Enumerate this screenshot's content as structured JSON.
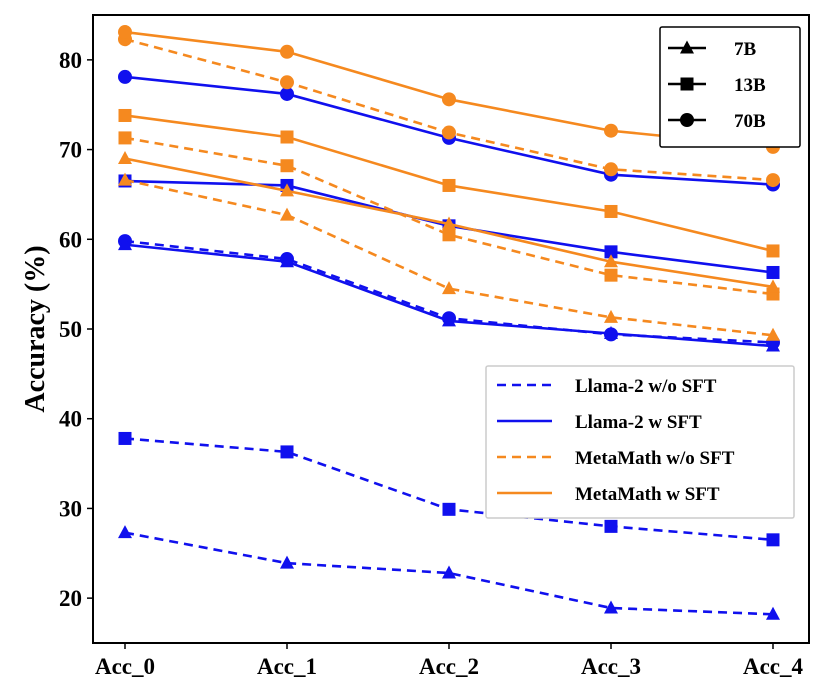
{
  "chart_data": {
    "type": "line",
    "title": "",
    "xlabel": "",
    "ylabel": "Accuracy (%)",
    "categories": [
      "Acc_0",
      "Acc_1",
      "Acc_2",
      "Acc_3",
      "Acc_4"
    ],
    "ylim": [
      15,
      85
    ],
    "yticks": [
      20,
      30,
      40,
      50,
      60,
      70,
      80
    ],
    "grid": false,
    "colors": {
      "llama": "#1010ee",
      "metamath": "#f5891f",
      "axis": "#000000"
    },
    "series": [
      {
        "name": "Llama-2 w/o SFT 7B",
        "model": "Llama-2",
        "sft": false,
        "size": "7B",
        "values": [
          27.3,
          23.9,
          22.8,
          18.9,
          18.2
        ]
      },
      {
        "name": "Llama-2 w/o SFT 13B",
        "model": "Llama-2",
        "sft": false,
        "size": "13B",
        "values": [
          37.8,
          36.3,
          29.9,
          28.0,
          26.5
        ]
      },
      {
        "name": "Llama-2 w/o SFT 70B",
        "model": "Llama-2",
        "sft": false,
        "size": "70B",
        "values": [
          59.8,
          57.8,
          51.2,
          49.4,
          48.5
        ]
      },
      {
        "name": "Llama-2 w SFT 7B",
        "model": "Llama-2",
        "sft": true,
        "size": "7B",
        "values": [
          59.4,
          57.5,
          50.9,
          49.5,
          48.1
        ]
      },
      {
        "name": "Llama-2 w SFT 13B",
        "model": "Llama-2",
        "sft": true,
        "size": "13B",
        "values": [
          66.5,
          66.0,
          61.5,
          58.6,
          56.3
        ]
      },
      {
        "name": "Llama-2 w SFT 70B",
        "model": "Llama-2",
        "sft": true,
        "size": "70B",
        "values": [
          78.1,
          76.2,
          71.3,
          67.2,
          66.1
        ]
      },
      {
        "name": "MetaMath w/o SFT 7B",
        "model": "MetaMath",
        "sft": false,
        "size": "7B",
        "values": [
          66.6,
          62.7,
          54.5,
          51.3,
          49.3
        ]
      },
      {
        "name": "MetaMath w/o SFT 13B",
        "model": "MetaMath",
        "sft": false,
        "size": "13B",
        "values": [
          71.3,
          68.2,
          60.5,
          56.0,
          53.9
        ]
      },
      {
        "name": "MetaMath w/o SFT 70B",
        "model": "MetaMath",
        "sft": false,
        "size": "70B",
        "values": [
          82.3,
          77.5,
          71.9,
          67.8,
          66.6
        ]
      },
      {
        "name": "MetaMath w SFT 7B",
        "model": "MetaMath",
        "sft": true,
        "size": "7B",
        "values": [
          69.0,
          65.4,
          61.7,
          57.5,
          54.7
        ]
      },
      {
        "name": "MetaMath w SFT 13B",
        "model": "MetaMath",
        "sft": true,
        "size": "13B",
        "values": [
          73.8,
          71.4,
          66.0,
          63.1,
          58.7
        ]
      },
      {
        "name": "MetaMath w SFT 70B",
        "model": "MetaMath",
        "sft": true,
        "size": "70B",
        "values": [
          83.1,
          80.9,
          75.6,
          72.1,
          70.3
        ]
      }
    ],
    "legend_sizes": {
      "position": "top-right",
      "entries": [
        "7B",
        "13B",
        "70B"
      ]
    },
    "legend_models": {
      "position": "lower-right",
      "entries": [
        "Llama-2 w/o SFT",
        "Llama-2 w SFT",
        "MetaMath w/o SFT",
        "MetaMath w SFT"
      ]
    }
  }
}
